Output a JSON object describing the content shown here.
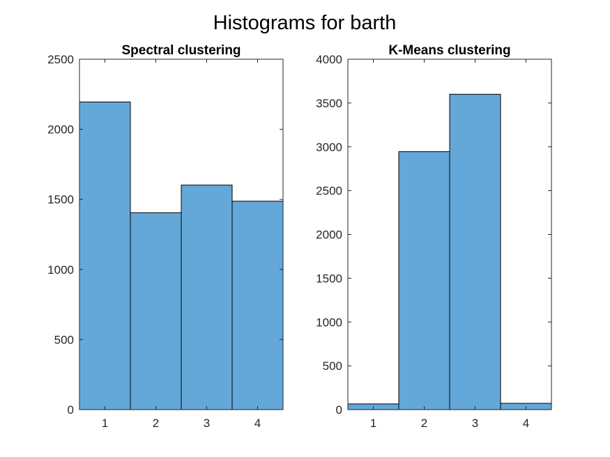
{
  "figure": {
    "title": "Histograms for barth"
  },
  "chart_data": [
    {
      "type": "bar",
      "title": "Spectral clustering",
      "xlabel": "",
      "ylabel": "",
      "categories": [
        "1",
        "2",
        "3",
        "4"
      ],
      "values": [
        2195,
        1405,
        1602,
        1487
      ],
      "xlim": [
        0.5,
        4.5
      ],
      "ylim": [
        0,
        2500
      ],
      "yticks": [
        0,
        500,
        1000,
        1500,
        2000,
        2500
      ],
      "ytick_labels": [
        "0",
        "500",
        "1000",
        "1500",
        "2000",
        "2500"
      ],
      "color": "#63a8d8",
      "edge_color": "#000000",
      "grid": false
    },
    {
      "type": "bar",
      "title": "K-Means clustering",
      "xlabel": "",
      "ylabel": "",
      "categories": [
        "1",
        "2",
        "3",
        "4"
      ],
      "values": [
        65,
        2945,
        3600,
        72
      ],
      "xlim": [
        0.5,
        4.5
      ],
      "ylim": [
        0,
        4000
      ],
      "yticks": [
        0,
        500,
        1000,
        1500,
        2000,
        2500,
        3000,
        3500,
        4000
      ],
      "ytick_labels": [
        "0",
        "500",
        "1000",
        "1500",
        "2000",
        "2500",
        "3000",
        "3500",
        "4000"
      ],
      "color": "#63a8d8",
      "edge_color": "#000000",
      "grid": false
    }
  ]
}
